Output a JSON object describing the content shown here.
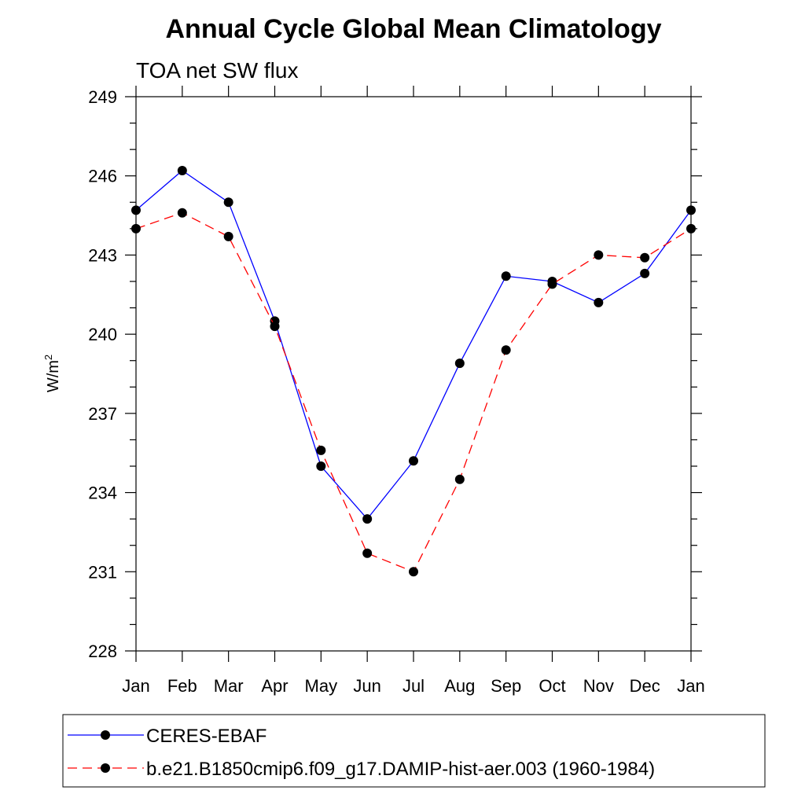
{
  "chart_data": {
    "type": "line",
    "title": "Annual Cycle Global Mean Climatology",
    "subtitle": "TOA net SW flux",
    "xlabel": "",
    "ylabel": "W/m",
    "ylabel_sup": "2",
    "categories": [
      "Jan",
      "Feb",
      "Mar",
      "Apr",
      "May",
      "Jun",
      "Jul",
      "Aug",
      "Sep",
      "Oct",
      "Nov",
      "Dec",
      "Jan"
    ],
    "ylim": [
      228,
      249
    ],
    "yticks": [
      228,
      231,
      234,
      237,
      240,
      243,
      246,
      249
    ],
    "grid": false,
    "legend_placement": "bottom",
    "series": [
      {
        "name": "CERES-EBAF",
        "color": "#0000ff",
        "dash": "solid",
        "values": [
          244.7,
          246.2,
          245.0,
          240.5,
          235.0,
          233.0,
          235.2,
          238.9,
          242.2,
          242.0,
          241.2,
          242.3,
          244.7
        ]
      },
      {
        "name": "b.e21.B1850cmip6.f09_g17.DAMIP-hist-aer.003 (1960-1984)",
        "color": "#ff0000",
        "dash": "dashed",
        "values": [
          244.0,
          244.6,
          243.7,
          240.3,
          235.6,
          231.7,
          231.0,
          234.5,
          239.4,
          241.9,
          243.0,
          242.9,
          244.0
        ]
      }
    ]
  }
}
